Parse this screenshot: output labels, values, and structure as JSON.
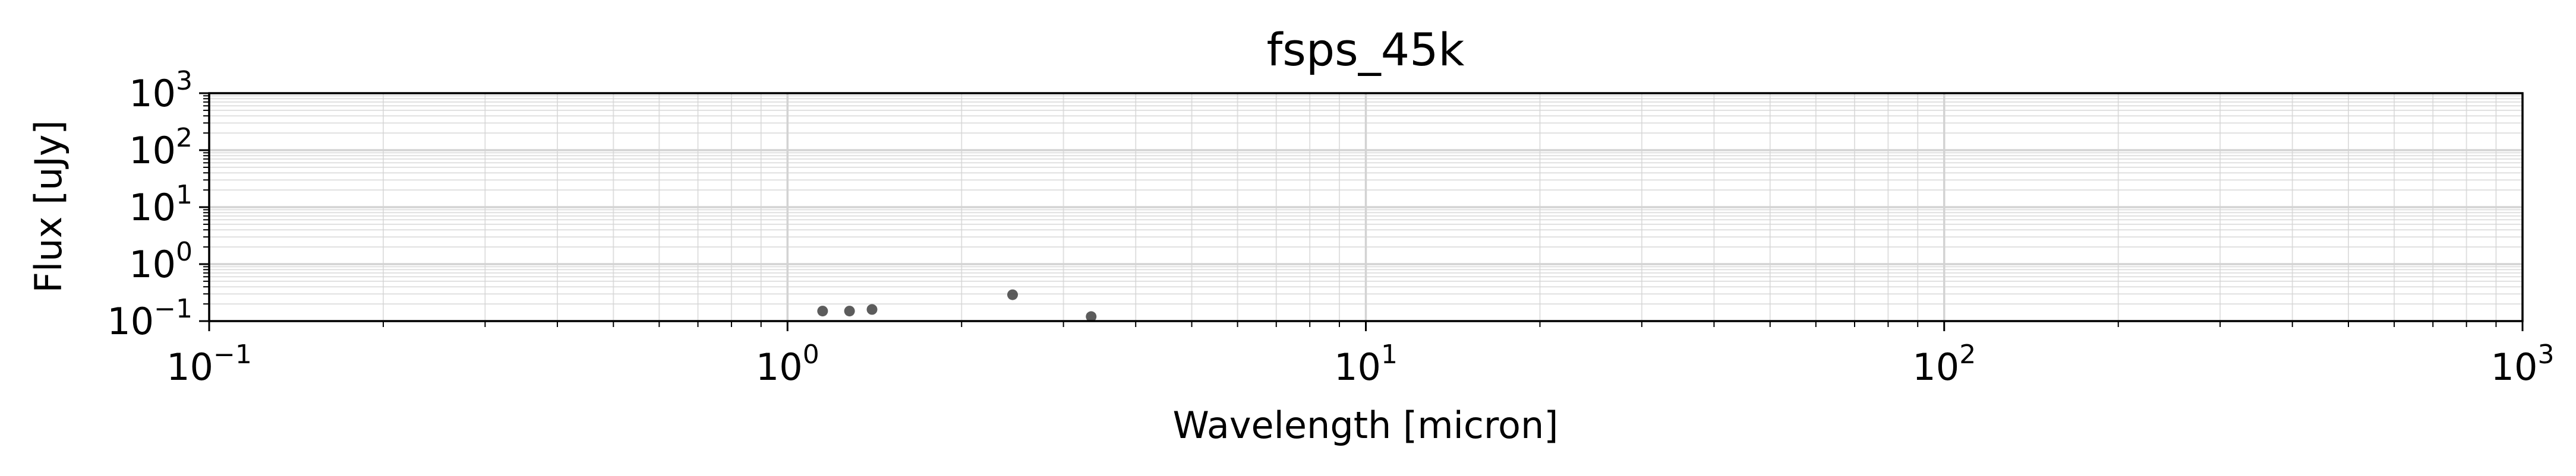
{
  "chart_data": {
    "type": "scatter",
    "title": "fsps_45k",
    "xlabel": "Wavelength [micron]",
    "ylabel": "Flux [uJy]",
    "x_scale": "log",
    "y_scale": "log",
    "xlim": [
      0.1,
      1000
    ],
    "ylim": [
      0.1,
      1000
    ],
    "x_ticks": [
      {
        "base": "10",
        "exp": "−1",
        "value": 0.1
      },
      {
        "base": "10",
        "exp": "0",
        "value": 1
      },
      {
        "base": "10",
        "exp": "1",
        "value": 10
      },
      {
        "base": "10",
        "exp": "2",
        "value": 100
      },
      {
        "base": "10",
        "exp": "3",
        "value": 1000
      }
    ],
    "y_ticks": [
      {
        "base": "10",
        "exp": "−1",
        "value": 0.1
      },
      {
        "base": "10",
        "exp": "0",
        "value": 1
      },
      {
        "base": "10",
        "exp": "1",
        "value": 10
      },
      {
        "base": "10",
        "exp": "2",
        "value": 100
      },
      {
        "base": "10",
        "exp": "3",
        "value": 1000
      }
    ],
    "grid": true,
    "grid_minor": true,
    "marker_color": "#404040",
    "grid_color": "#d3d3d3",
    "series": [
      {
        "points": [
          {
            "x": 1.15,
            "y": 0.15
          },
          {
            "x": 1.28,
            "y": 0.15
          },
          {
            "x": 1.4,
            "y": 0.16
          },
          {
            "x": 2.45,
            "y": 0.29
          },
          {
            "x": 3.35,
            "y": 0.12
          }
        ]
      }
    ]
  }
}
